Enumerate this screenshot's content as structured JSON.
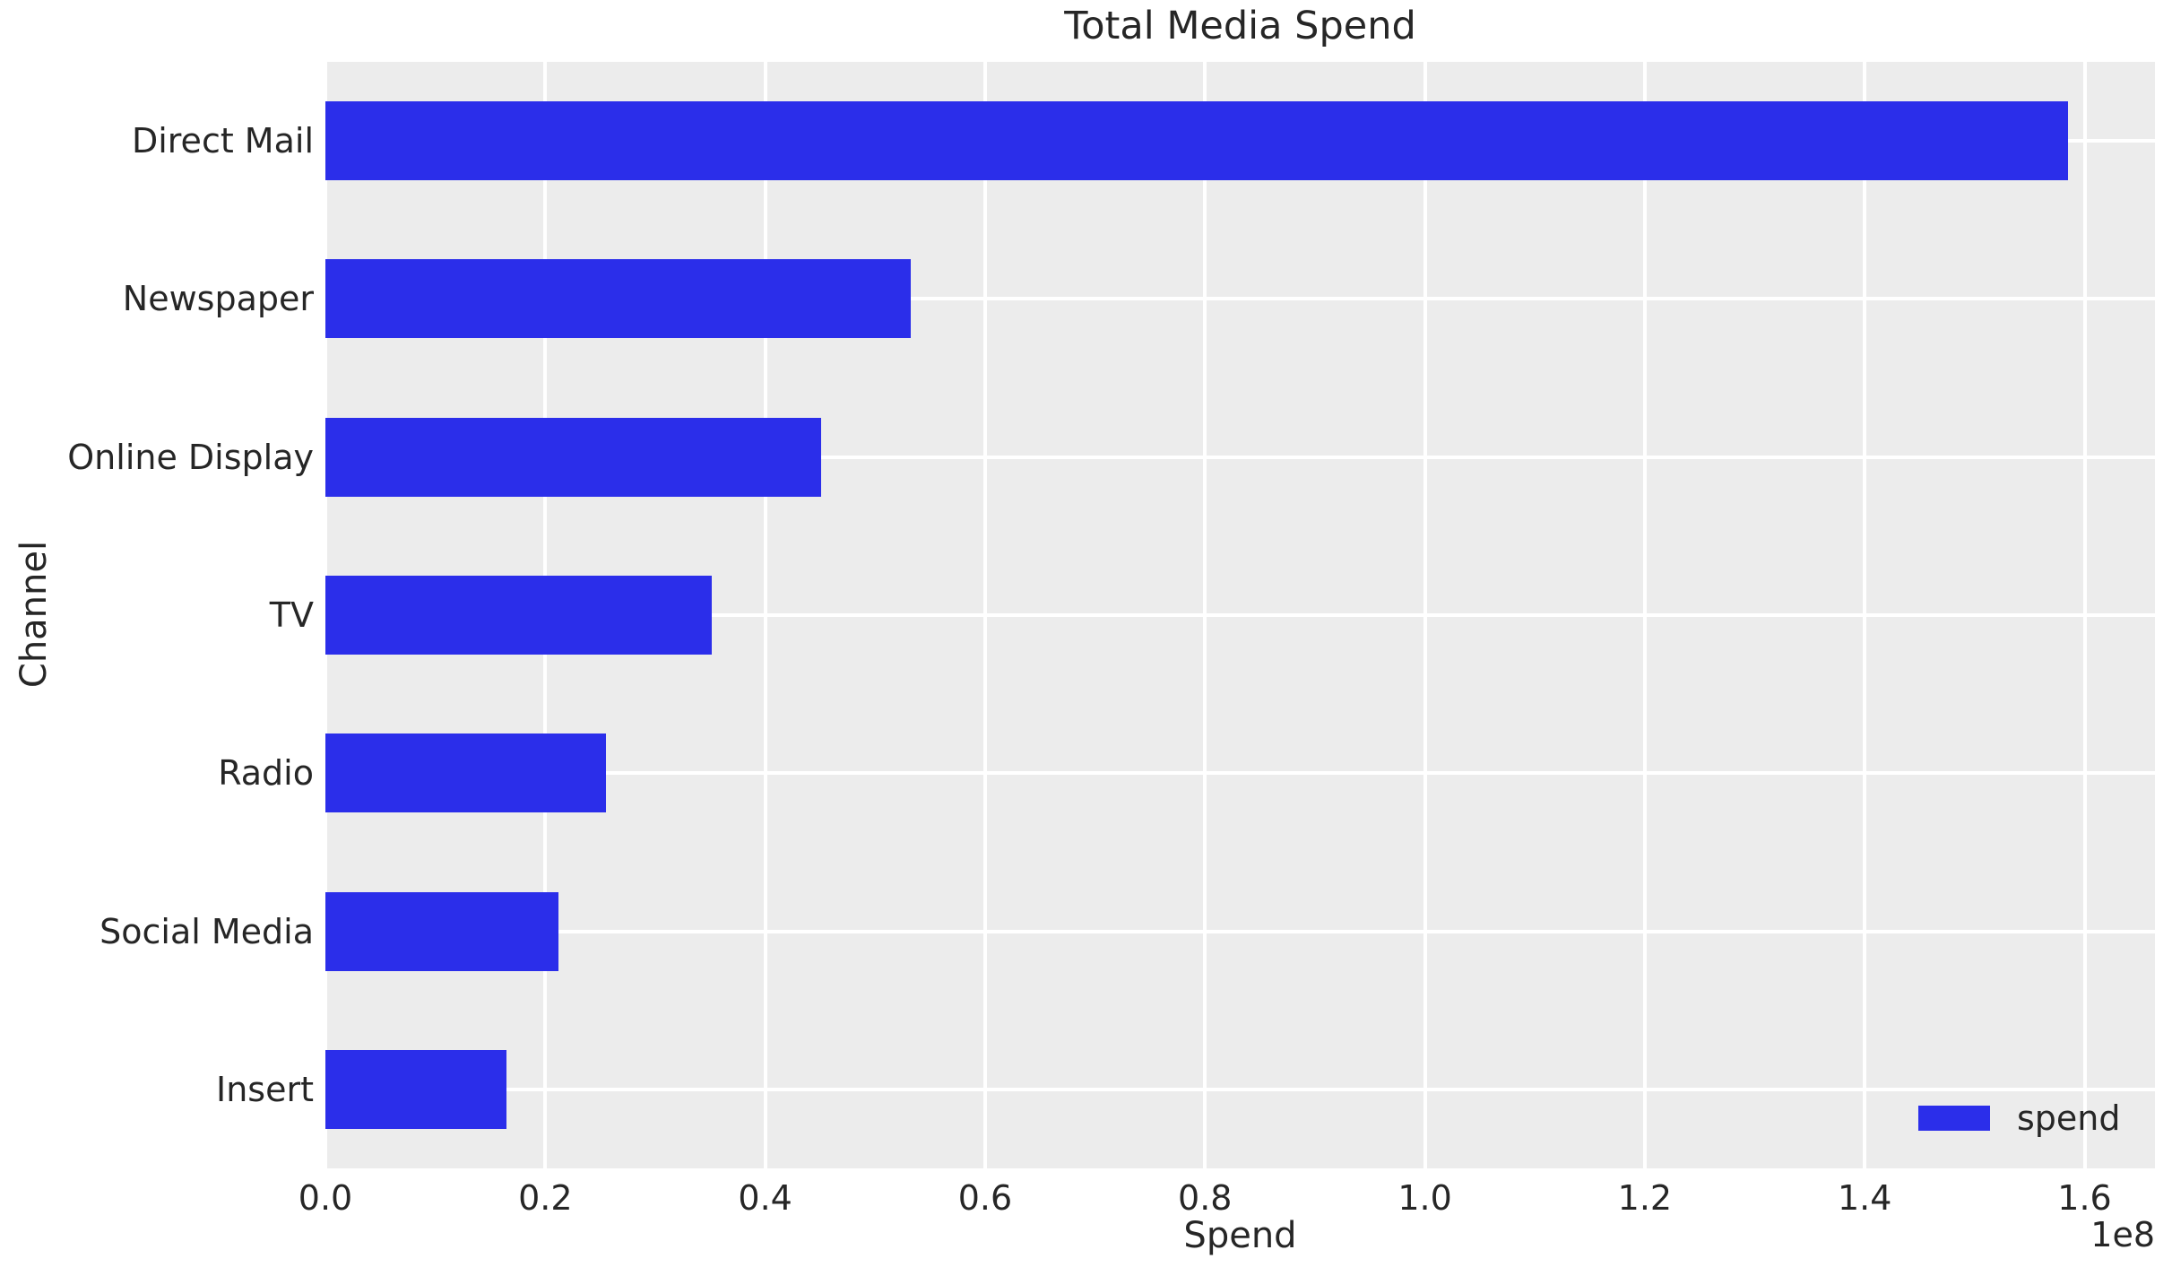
{
  "chart_data": {
    "type": "bar",
    "orientation": "horizontal",
    "title": "Total Media Spend",
    "xlabel": "Spend",
    "ylabel": "Channel",
    "categories": [
      "Direct Mail",
      "Newspaper",
      "Online Display",
      "TV",
      "Radio",
      "Social Media",
      "Insert"
    ],
    "values": [
      158500000,
      53200000,
      45100000,
      35100000,
      25500000,
      21200000,
      16500000
    ],
    "series_name": "spend",
    "xlim": [
      0,
      166400000
    ],
    "xtick_values": [
      0,
      20000000,
      40000000,
      60000000,
      80000000,
      100000000,
      120000000,
      140000000,
      160000000
    ],
    "xtick_labels": [
      "0.0",
      "0.2",
      "0.4",
      "0.6",
      "0.8",
      "1.0",
      "1.2",
      "1.4",
      "1.6"
    ],
    "x_offset_label": "1e8",
    "grid": true,
    "legend": {
      "labels": [
        "spend"
      ],
      "position": "lower right"
    },
    "bar_band_fraction": 0.5
  },
  "colors": {
    "bar": "#2b2eea",
    "plot_background": "#ececec",
    "gridline": "#ffffff",
    "text": "#262626",
    "figure_background": "#ffffff"
  }
}
